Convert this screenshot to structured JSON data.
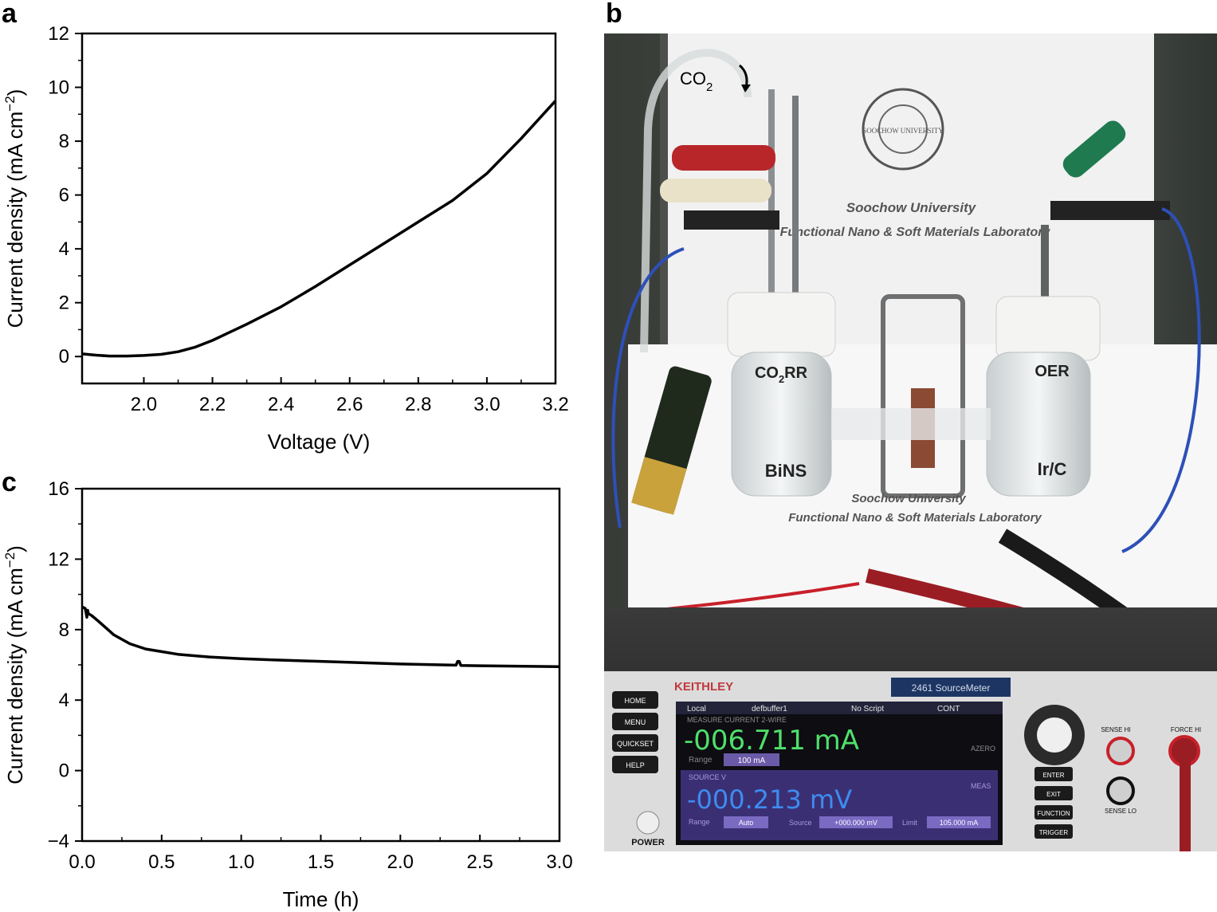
{
  "panels": {
    "a": "a",
    "b": "b",
    "c": "c"
  },
  "chart_data": [
    {
      "panel": "a",
      "type": "line",
      "xlabel": "Voltage (V)",
      "ylabel": "Current density (mA cm",
      "ylabel_sup": "−2",
      "ylabel_end": ")",
      "xlim": [
        1.82,
        3.2
      ],
      "ylim": [
        -1,
        12
      ],
      "xticks": [
        2.0,
        2.2,
        2.4,
        2.6,
        2.8,
        3.0,
        3.2
      ],
      "xtick_labels": [
        "2.0",
        "2.2",
        "2.4",
        "2.6",
        "2.8",
        "3.0",
        "3.2"
      ],
      "yticks": [
        0,
        2,
        4,
        6,
        8,
        10,
        12
      ],
      "ytick_labels": [
        "0",
        "2",
        "4",
        "6",
        "8",
        "10",
        "12"
      ],
      "grid": false,
      "series": [
        {
          "x": [
            1.82,
            1.86,
            1.9,
            1.95,
            2.0,
            2.05,
            2.1,
            2.15,
            2.2,
            2.25,
            2.3,
            2.4,
            2.5,
            2.6,
            2.7,
            2.8,
            2.9,
            3.0,
            3.1,
            3.2
          ],
          "y": [
            0.1,
            0.05,
            0.02,
            0.02,
            0.04,
            0.08,
            0.18,
            0.35,
            0.6,
            0.9,
            1.2,
            1.85,
            2.6,
            3.4,
            4.2,
            5.0,
            5.8,
            6.8,
            8.1,
            9.5
          ]
        }
      ]
    },
    {
      "panel": "c",
      "type": "line",
      "xlabel": "Time (h)",
      "ylabel": "Current density (mA cm",
      "ylabel_sup": "−2",
      "ylabel_end": ")",
      "xlim": [
        0,
        3.0
      ],
      "ylim": [
        -4,
        16
      ],
      "xticks": [
        0,
        0.5,
        1.0,
        1.5,
        2.0,
        2.5,
        3.0
      ],
      "xtick_labels": [
        "0.0",
        "0.5",
        "1.0",
        "1.5",
        "2.0",
        "2.5",
        "3.0"
      ],
      "yticks": [
        -4,
        0,
        4,
        8,
        12,
        16
      ],
      "ytick_labels": [
        "−4",
        "0",
        "4",
        "8",
        "12",
        "16"
      ],
      "grid": false,
      "series": [
        {
          "x": [
            0.0,
            0.02,
            0.03,
            0.035,
            0.04,
            0.06,
            0.1,
            0.15,
            0.2,
            0.3,
            0.4,
            0.5,
            0.6,
            0.8,
            1.0,
            1.2,
            1.5,
            2.0,
            2.35,
            2.36,
            2.37,
            2.38,
            2.5,
            3.0
          ],
          "y": [
            9.3,
            9.2,
            8.7,
            9.1,
            8.9,
            8.8,
            8.5,
            8.1,
            7.7,
            7.2,
            6.9,
            6.75,
            6.6,
            6.45,
            6.35,
            6.28,
            6.2,
            6.05,
            5.98,
            6.2,
            6.2,
            5.97,
            5.95,
            5.9
          ]
        }
      ]
    }
  ],
  "photo": {
    "co2_label": "CO",
    "co2_sub": "2",
    "cathode_label": "CO",
    "cathode_sub": "2",
    "cathode_suffix": "RR",
    "anode_label": "OER",
    "cathode_catalyst": "BiNS",
    "anode_catalyst": "Ir/C",
    "university": "Soochow University",
    "lab": "Functional Nano & Soft Materials Laboratory",
    "seal_text": "SOOCHOW UNIVERSITY",
    "meter": {
      "brand": "KEITHLEY",
      "model": "2461 SourceMeter",
      "status_local": "Local",
      "status_buffer": "defbuffer1",
      "status_script": "No Script",
      "status_cont": "CONT",
      "mode": "MEASURE CURRENT 2-WIRE",
      "current_reading": "-006.711 mA",
      "range_label": "Range",
      "range_value": "100 mA",
      "azero": "AZERO",
      "source_label": "SOURCE V",
      "voltage_reading": "-000.213 mV",
      "meas": "MEAS",
      "range2_label": "Range",
      "range2_value": "Auto",
      "source_value_label": "Source",
      "source_value": "+000.000 mV",
      "limit_label": "Limit",
      "limit_value": "105.000 mA",
      "buttons": [
        "HOME",
        "MENU",
        "QUICKSET",
        "HELP"
      ],
      "right_buttons": [
        "ENTER",
        "EXIT",
        "FUNCTION",
        "TRIGGER"
      ],
      "power": "POWER",
      "sense_hi": "SENSE HI",
      "force_hi": "FORCE HI",
      "sense_lo": "SENSE LO"
    }
  }
}
